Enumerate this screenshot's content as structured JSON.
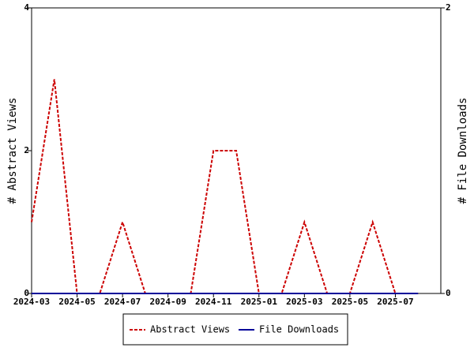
{
  "chart_data": {
    "type": "line",
    "y_label": "# Abstract Views",
    "y2_label": "# File Downloads",
    "categories": [
      "2024-03",
      null,
      "2024-05",
      null,
      "2024-07",
      null,
      "2024-09",
      null,
      "2024-11",
      null,
      "2025-01",
      null,
      "2025-03",
      null,
      "2025-05",
      null,
      "2025-07",
      null
    ],
    "series": [
      {
        "name": "Abstract Views",
        "color": "#cc0000",
        "values": [
          1,
          3,
          0,
          0,
          1,
          0,
          0,
          0,
          2,
          2,
          0,
          0,
          1,
          0,
          0,
          1,
          0,
          0
        ]
      },
      {
        "name": "File Downloads",
        "color": "#000099",
        "axis": "y2",
        "values": [
          0,
          0,
          0,
          0,
          0,
          0,
          0,
          0,
          0,
          0,
          0,
          0,
          0,
          0,
          0,
          0,
          0,
          0
        ]
      }
    ],
    "ylim": [
      0,
      4
    ],
    "yticks": [
      0,
      2,
      4
    ],
    "y2lim": [
      0,
      2
    ],
    "y2ticks": [
      0,
      2
    ]
  }
}
